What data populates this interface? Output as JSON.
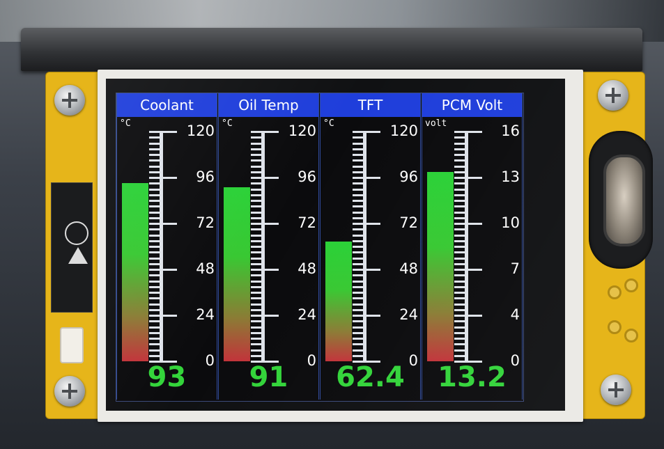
{
  "gauges": [
    {
      "title": "Coolant",
      "unit": "°C",
      "value_text": "93",
      "value": 93,
      "min": 0,
      "max": 120,
      "tick_labels": [
        "120",
        "96",
        "72",
        "48",
        "24",
        "0"
      ]
    },
    {
      "title": "Oil Temp",
      "unit": "°C",
      "value_text": "91",
      "value": 91,
      "min": 0,
      "max": 120,
      "tick_labels": [
        "120",
        "96",
        "72",
        "48",
        "24",
        "0"
      ]
    },
    {
      "title": "TFT",
      "unit": "°C",
      "value_text": "62.4",
      "value": 62.4,
      "min": 0,
      "max": 120,
      "tick_labels": [
        "120",
        "96",
        "72",
        "48",
        "24",
        "0"
      ]
    },
    {
      "title": "PCM Volt",
      "unit": "volt",
      "value_text": "13.2",
      "value": 13.2,
      "min": 0,
      "max": 16,
      "tick_labels": [
        "16",
        "13",
        "10",
        "7",
        "4",
        "0"
      ]
    }
  ],
  "colors": {
    "header": "#1f3edb",
    "value_text": "#33d43a",
    "bar_top": "#2ad137",
    "bar_bottom": "#c2333a",
    "pcb": "#e6b51a"
  }
}
